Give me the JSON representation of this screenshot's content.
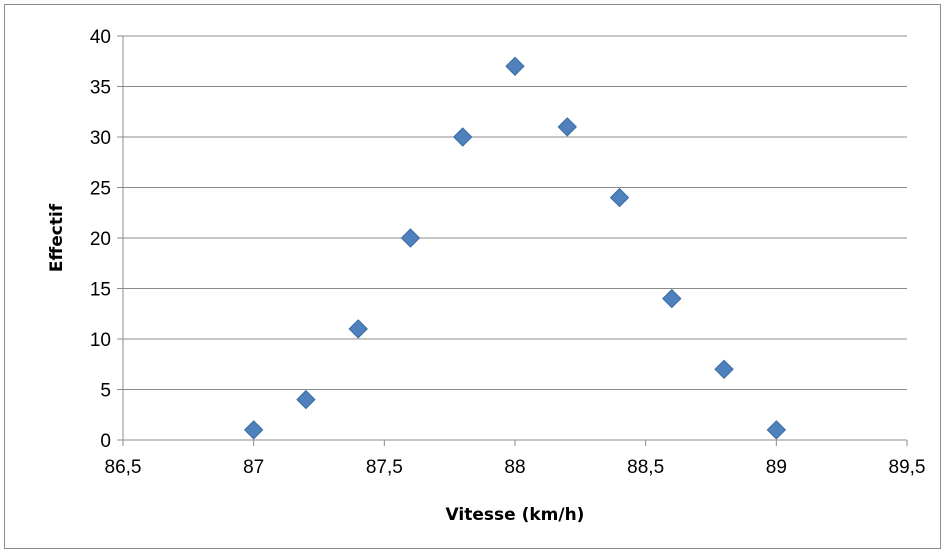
{
  "chart_data": {
    "type": "scatter",
    "xlabel": "Vitesse (km/h)",
    "ylabel": "Effectif",
    "xlim": [
      86.5,
      89.5
    ],
    "ylim": [
      0,
      40
    ],
    "x_ticks": [
      "86,5",
      "87",
      "87,5",
      "88",
      "88,5",
      "89",
      "89,5"
    ],
    "x_tick_values": [
      86.5,
      87,
      87.5,
      88,
      88.5,
      89,
      89.5
    ],
    "y_ticks": [
      "0",
      "5",
      "10",
      "15",
      "20",
      "25",
      "30",
      "35",
      "40"
    ],
    "y_tick_values": [
      0,
      5,
      10,
      15,
      20,
      25,
      30,
      35,
      40
    ],
    "grid": true,
    "marker_color": "#4f81bd",
    "series": [
      {
        "x": [
          87.0,
          87.2,
          87.4,
          87.6,
          87.8,
          88.0,
          88.2,
          88.4,
          88.6,
          88.8,
          89.0
        ],
        "y": [
          1,
          4,
          11,
          20,
          30,
          37,
          31,
          24,
          14,
          7,
          1
        ]
      }
    ]
  }
}
